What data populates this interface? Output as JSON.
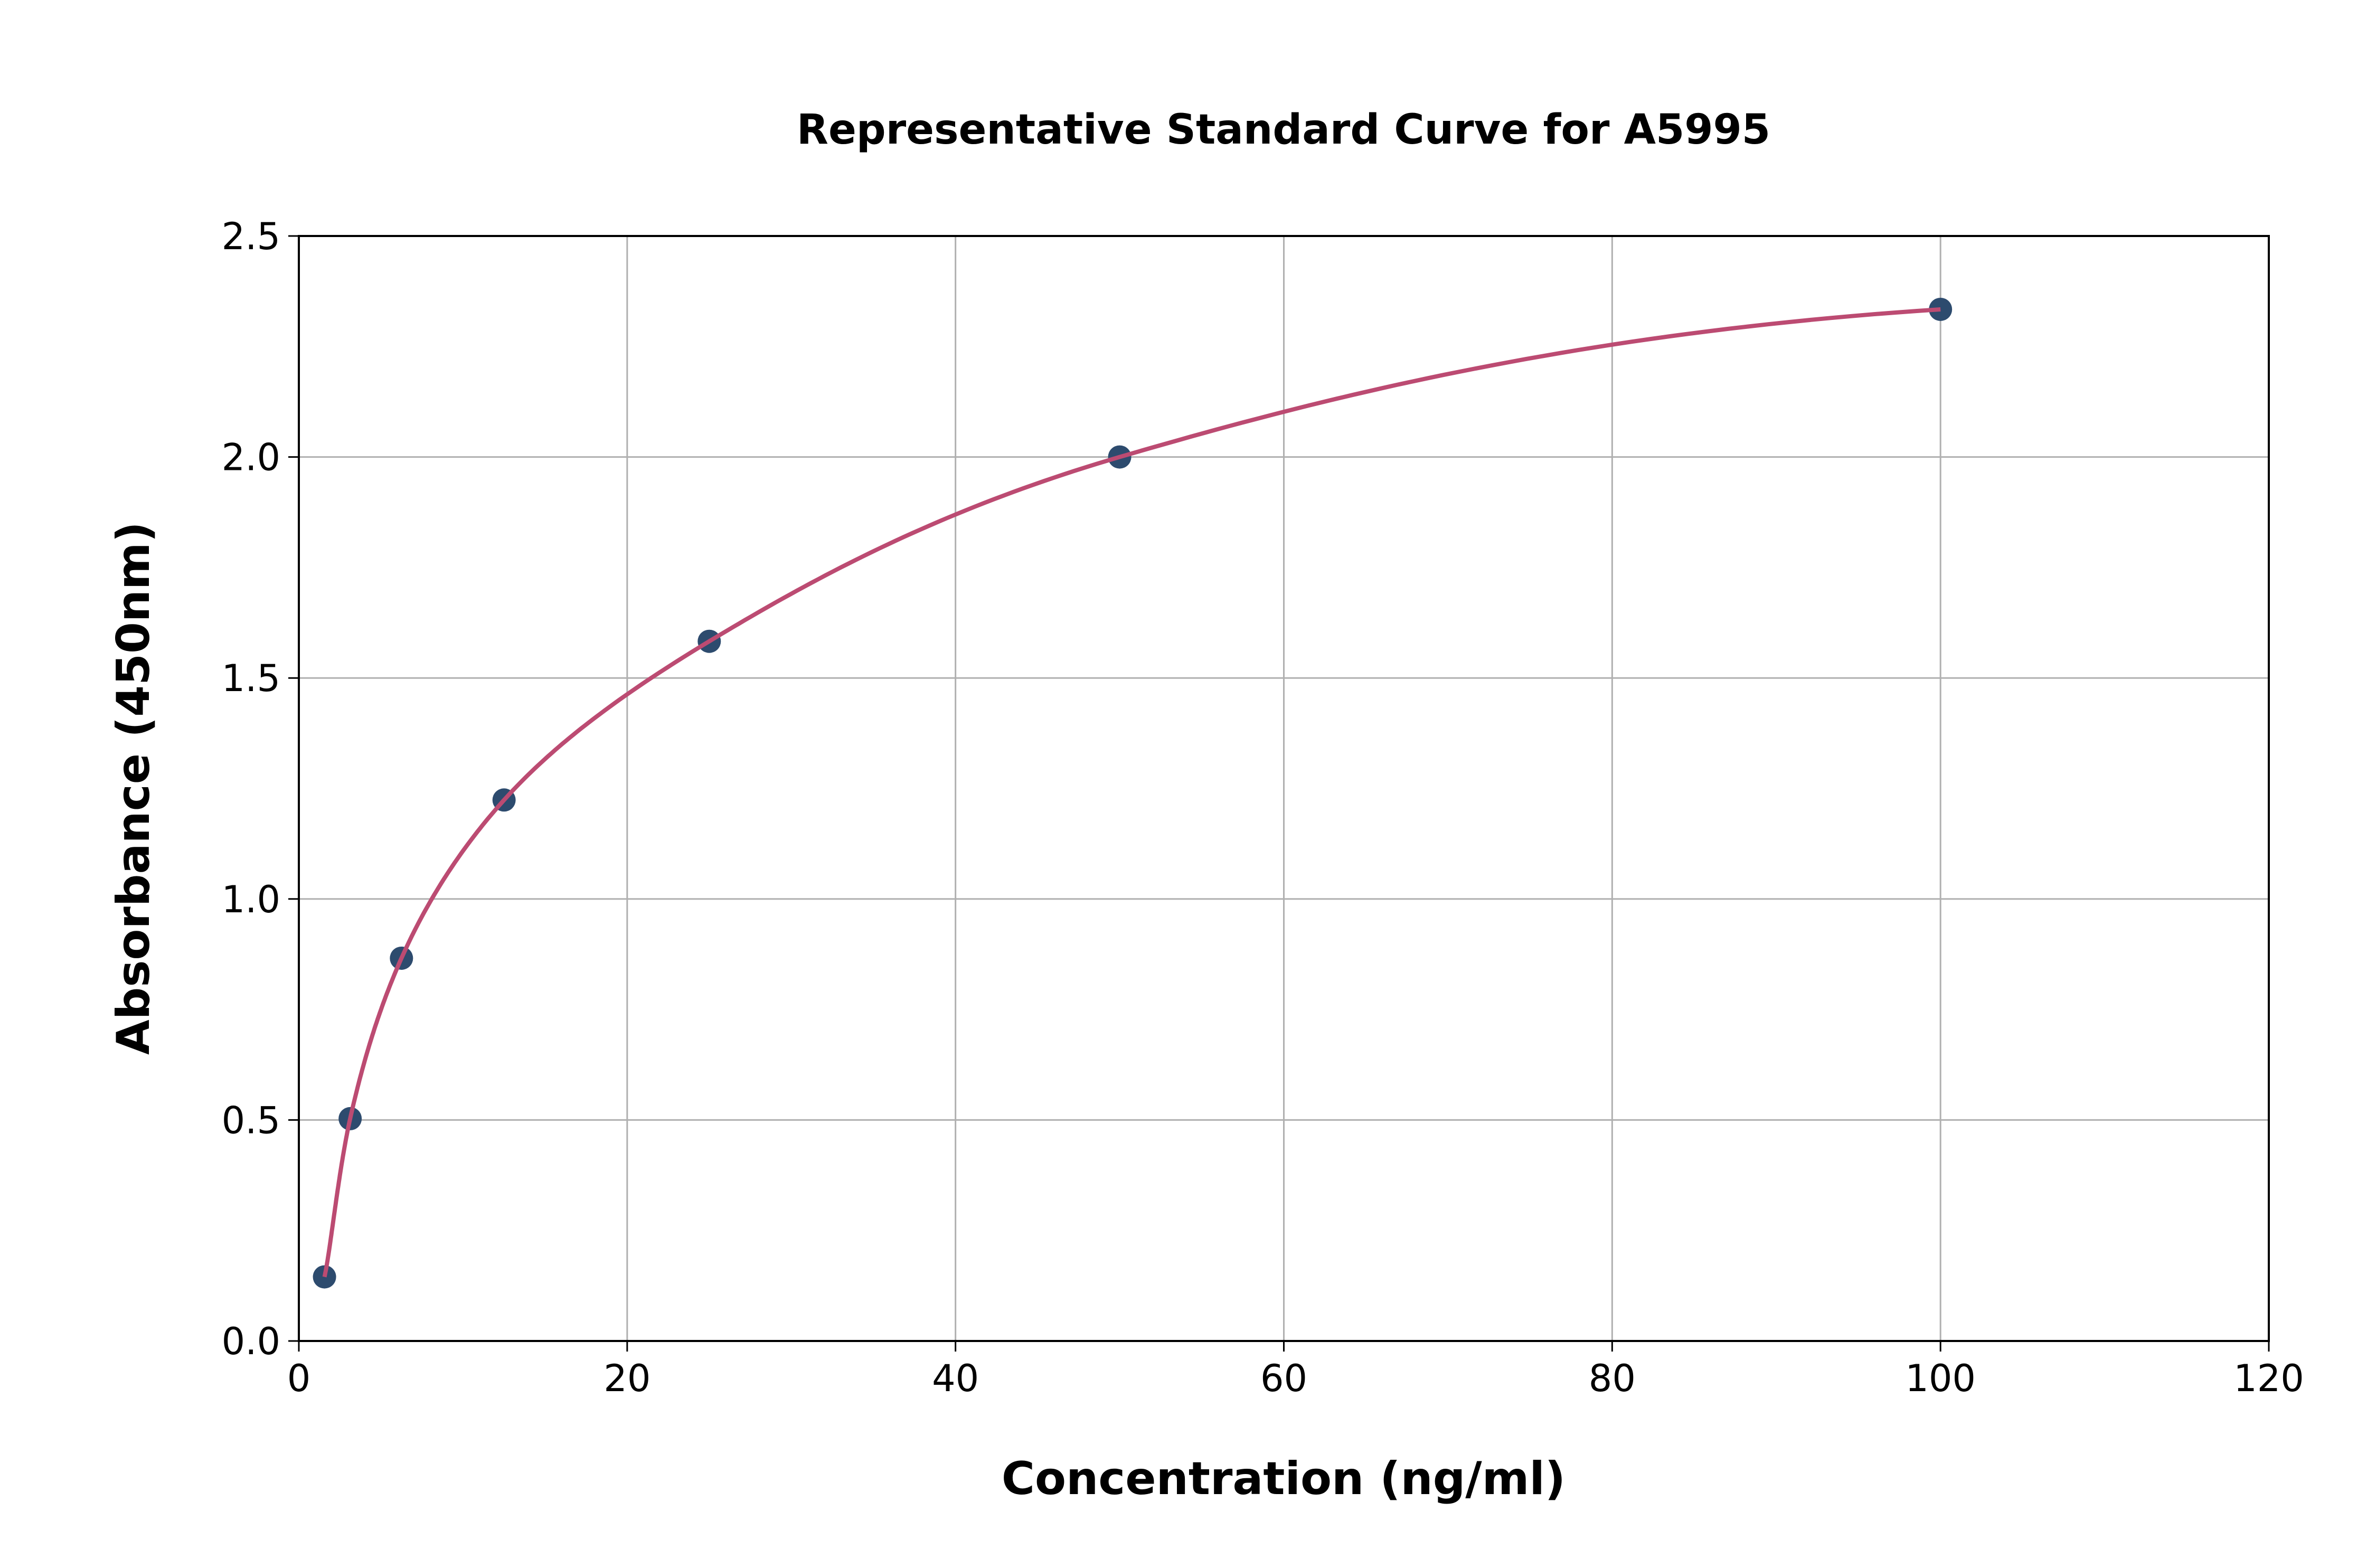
{
  "chart_data": {
    "type": "scatter",
    "title": "Representative Standard Curve for A5995",
    "xlabel": "Concentration (ng/ml)",
    "ylabel": "Absorbance (450nm)",
    "xlim": [
      0,
      120
    ],
    "ylim": [
      0,
      2.5
    ],
    "xticks": [
      "0",
      "20",
      "40",
      "60",
      "80",
      "100",
      "120"
    ],
    "yticks": [
      "0.0",
      "0.5",
      "1.0",
      "1.5",
      "2.0",
      "2.5"
    ],
    "grid": true,
    "legend": "none",
    "series": [
      {
        "type": "scatter",
        "x": [
          1.5625,
          3.125,
          6.25,
          12.5,
          25,
          50,
          100
        ],
        "y": [
          0.145,
          0.503,
          0.866,
          1.224,
          1.583,
          2.0,
          2.334
        ],
        "color": "#2d4b6e"
      },
      {
        "type": "line",
        "fit": "standard curve",
        "color": "#bc4b72"
      }
    ]
  }
}
